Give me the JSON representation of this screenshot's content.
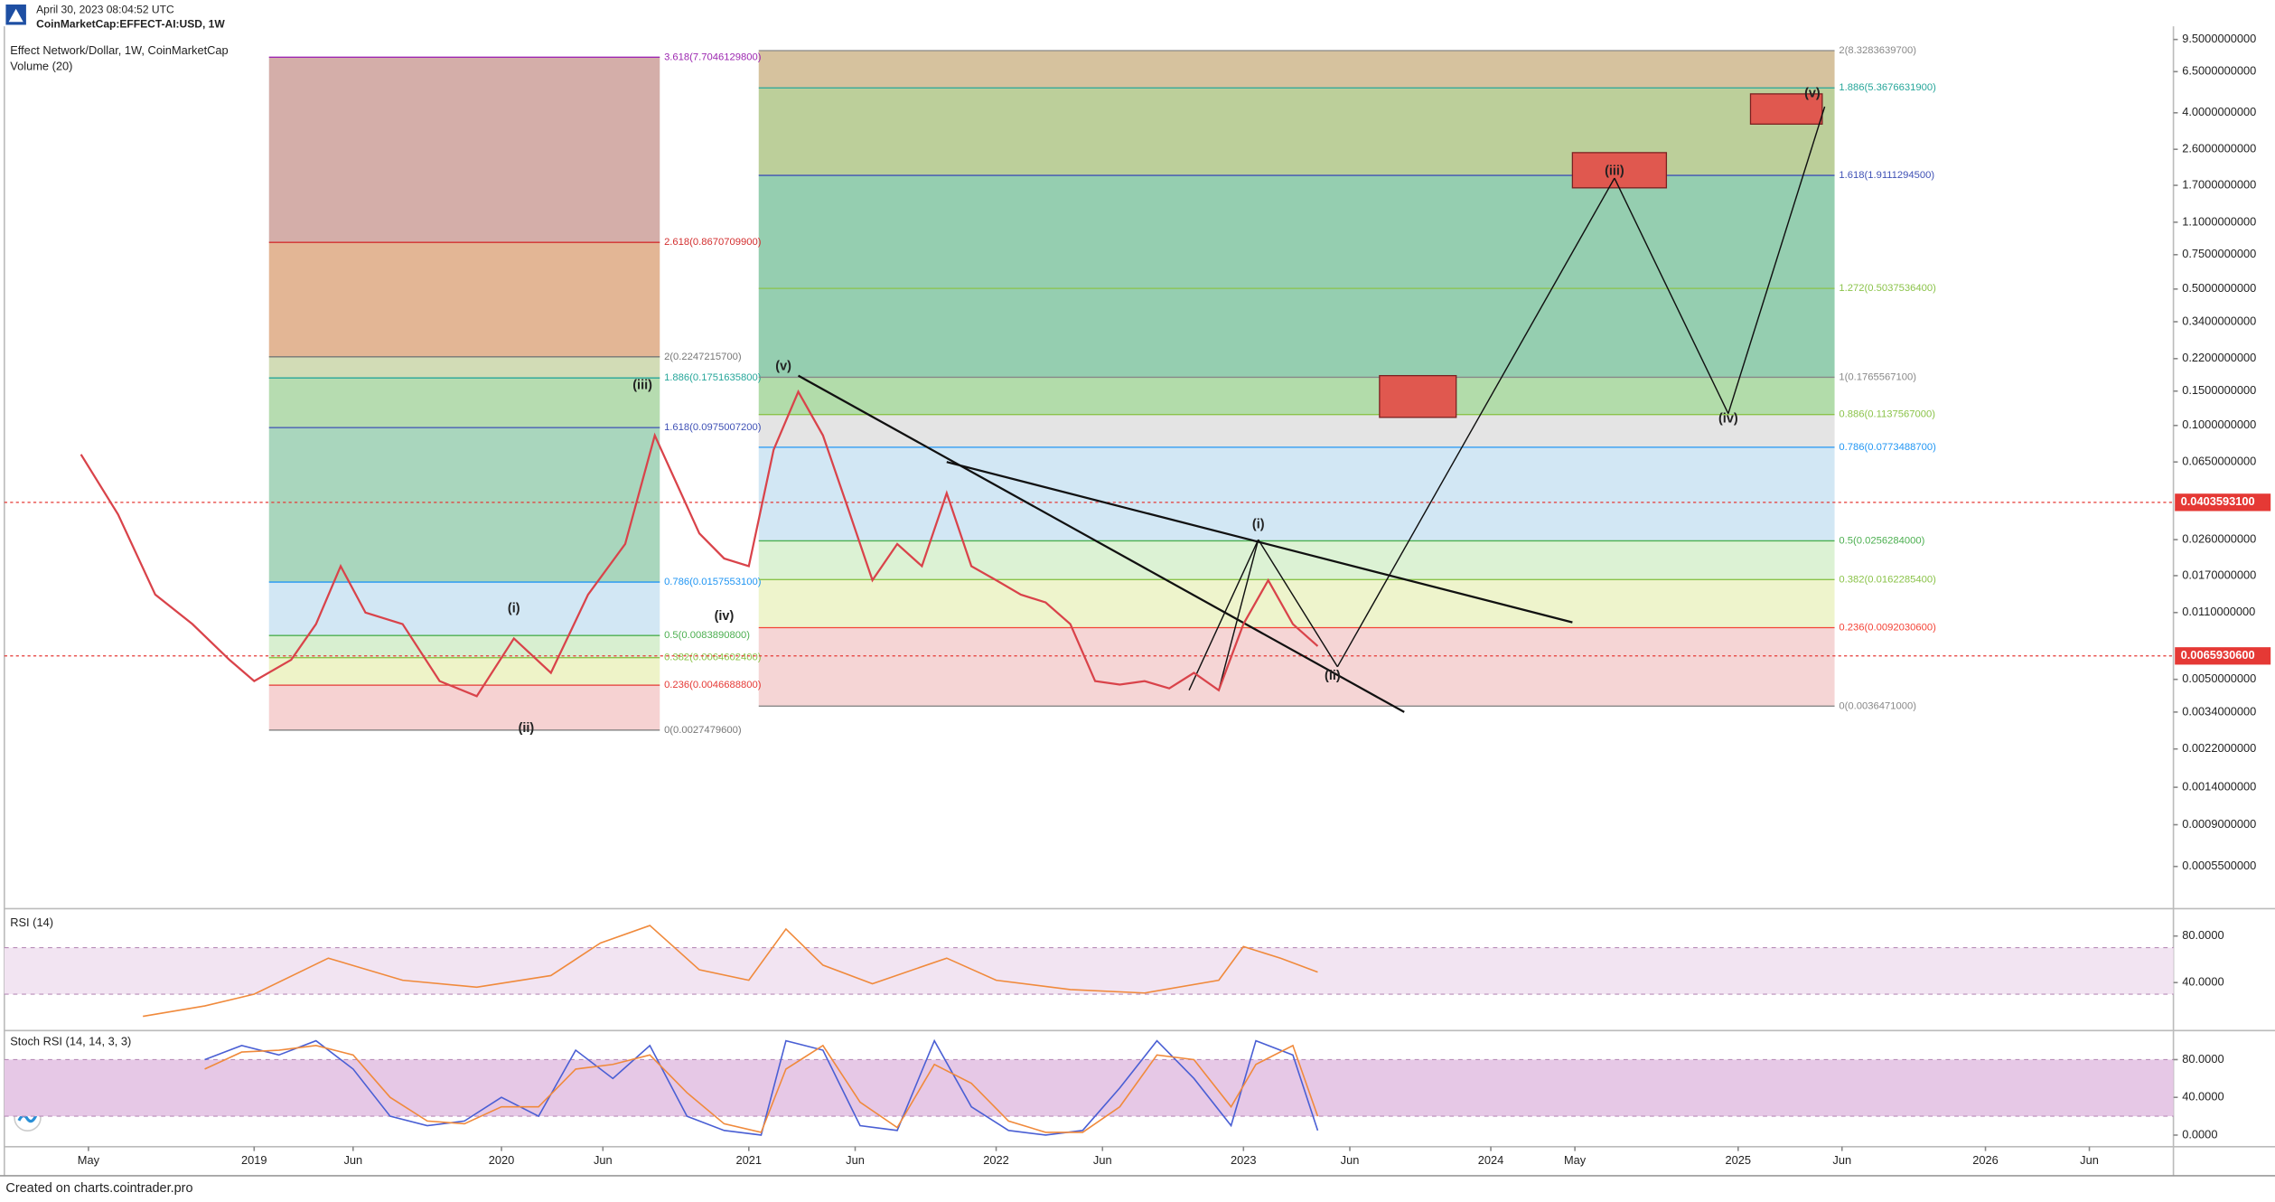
{
  "header": {
    "timestamp": "April 30, 2023 08:04:52 UTC",
    "symbol": "CoinMarketCap:EFFECT-AI:USD, 1W"
  },
  "footer": "Created on charts.cointrader.pro",
  "chart_data": [
    {
      "type": "line",
      "title": "Effect Network/Dollar, 1W, CoinMarketCap",
      "subtitle": "Volume (20)",
      "color": "#d9434a",
      "log_scale": true,
      "xlim": [
        2017.99,
        2026.76
      ],
      "ylim": [
        0.00034,
        11.1
      ],
      "xticks": [
        {
          "value": 2018.33,
          "label": "May"
        },
        {
          "value": 2019,
          "label": "2019"
        },
        {
          "value": 2019.4,
          "label": "Jun"
        },
        {
          "value": 2020,
          "label": "2020"
        },
        {
          "value": 2020.41,
          "label": "Jun"
        },
        {
          "value": 2021,
          "label": "2021"
        },
        {
          "value": 2021.43,
          "label": "Jun"
        },
        {
          "value": 2022,
          "label": "2022"
        },
        {
          "value": 2022.43,
          "label": "Jun"
        },
        {
          "value": 2023,
          "label": "2023"
        },
        {
          "value": 2023.43,
          "label": "Jun"
        },
        {
          "value": 2024,
          "label": "2024"
        },
        {
          "value": 2024.34,
          "label": "May"
        },
        {
          "value": 2025,
          "label": "2025"
        },
        {
          "value": 2025.42,
          "label": "Jun"
        },
        {
          "value": 2026,
          "label": "2026"
        },
        {
          "value": 2026.42,
          "label": "Jun"
        }
      ],
      "yticks": [
        {
          "value": 9.5,
          "label": "9.5000000000"
        },
        {
          "value": 6.5,
          "label": "6.5000000000"
        },
        {
          "value": 4,
          "label": "4.0000000000"
        },
        {
          "value": 2.6,
          "label": "2.6000000000"
        },
        {
          "value": 1.7,
          "label": "1.7000000000"
        },
        {
          "value": 1.1,
          "label": "1.1000000000"
        },
        {
          "value": 0.75,
          "label": "0.7500000000"
        },
        {
          "value": 0.5,
          "label": "0.5000000000"
        },
        {
          "value": 0.34,
          "label": "0.3400000000"
        },
        {
          "value": 0.22,
          "label": "0.2200000000"
        },
        {
          "value": 0.15,
          "label": "0.1500000000"
        },
        {
          "value": 0.1,
          "label": "0.1000000000"
        },
        {
          "value": 0.065,
          "label": "0.0650000000"
        },
        {
          "value": 0.026,
          "label": "0.0260000000"
        },
        {
          "value": 0.017,
          "label": "0.0170000000"
        },
        {
          "value": 0.011,
          "label": "0.0110000000"
        },
        {
          "value": 0.005,
          "label": "0.0050000000"
        },
        {
          "value": 0.0034,
          "label": "0.0034000000"
        },
        {
          "value": 0.0022,
          "label": "0.0022000000"
        },
        {
          "value": 0.0014,
          "label": "0.0014000000"
        },
        {
          "value": 0.0009,
          "label": "0.0009000000"
        },
        {
          "value": 0.00055,
          "label": "0.0005500000"
        }
      ],
      "x": [
        2018.3,
        2018.45,
        2018.6,
        2018.75,
        2018.9,
        2019.0,
        2019.15,
        2019.25,
        2019.35,
        2019.45,
        2019.6,
        2019.75,
        2019.9,
        2020.05,
        2020.2,
        2020.35,
        2020.5,
        2020.62,
        2020.7,
        2020.8,
        2020.9,
        2021.0,
        2021.1,
        2021.2,
        2021.3,
        2021.4,
        2021.5,
        2021.6,
        2021.7,
        2021.8,
        2021.9,
        2022.0,
        2022.1,
        2022.2,
        2022.3,
        2022.4,
        2022.5,
        2022.6,
        2022.7,
        2022.8,
        2022.9,
        2023.0,
        2023.1,
        2023.2,
        2023.3
      ],
      "values": [
        0.071,
        0.035,
        0.0136,
        0.0096,
        0.0063,
        0.0049,
        0.0063,
        0.0096,
        0.019,
        0.011,
        0.0096,
        0.0049,
        0.0041,
        0.0081,
        0.0054,
        0.0136,
        0.0247,
        0.089,
        0.053,
        0.028,
        0.0208,
        0.019,
        0.075,
        0.149,
        0.089,
        0.038,
        0.0161,
        0.0247,
        0.019,
        0.045,
        0.019,
        0.0161,
        0.0136,
        0.0124,
        0.0096,
        0.0049,
        0.0047,
        0.0049,
        0.0045,
        0.0054,
        0.0044,
        0.0096,
        0.0161,
        0.0096,
        0.0074
      ],
      "fibs": [
        {
          "xrange": [
            2019.06,
            2020.64
          ],
          "levels": [
            {
              "value": 7.70461298,
              "label": "3.618(7.7046129800)"
            },
            {
              "value": 0.86707099,
              "label": "2.618(0.8670709900)"
            },
            {
              "value": 0.22472157,
              "label": "2(0.2247215700)"
            },
            {
              "value": 0.17516358,
              "label": "1.886(0.1751635800)"
            },
            {
              "value": 0.09750072,
              "label": "1.618(0.0975007200)"
            },
            {
              "value": 0.01575531,
              "label": "0.786(0.0157553100)"
            },
            {
              "value": 0.00838908,
              "label": "0.5(0.0083890800)"
            },
            {
              "value": 0.00646024,
              "label": "0.382(0.0064602400)"
            },
            {
              "value": 0.00466888,
              "label": "0.236(0.0046688800)"
            },
            {
              "value": 0.00274796,
              "label": "0(0.0027479600)"
            }
          ],
          "colors": [
            "#9c27b0",
            "#d32f2f",
            "#777777",
            "#26a69a",
            "#3f51b5",
            "#2196f3",
            "#4caf50",
            "#8bc34a",
            "#e53935",
            "#777777"
          ],
          "fills": [
            "#d4aea9",
            "#e3b695",
            "#d2dcb6",
            "#b6dcb0",
            "#a9d6bd",
            "#d2e7f4",
            "#d8efd0",
            "#eef3c8",
            "#f6d2d2"
          ]
        },
        {
          "xrange": [
            2021.04,
            2025.39
          ],
          "levels": [
            {
              "value": 8.32836397,
              "label": "2(8.3283639700)"
            },
            {
              "value": 5.36766319,
              "label": "1.886(5.3676631900)"
            },
            {
              "value": 1.91112945,
              "label": "1.618(1.9111294500)"
            },
            {
              "value": 0.50375364,
              "label": "1.272(0.5037536400)"
            },
            {
              "value": 0.17655671,
              "label": "1(0.1765567100)"
            },
            {
              "value": 0.1137567,
              "label": "0.886(0.1137567000)"
            },
            {
              "value": 0.07734887,
              "label": "0.786(0.0773488700)"
            },
            {
              "value": 0.0256284,
              "label": "0.5(0.0256284000)"
            },
            {
              "value": 0.01622854,
              "label": "0.382(0.0162285400)"
            },
            {
              "value": 0.00920306,
              "label": "0.236(0.0092030600)"
            },
            {
              "value": 0.0036471,
              "label": "0(0.0036471000)"
            }
          ],
          "colors": [
            "#888888",
            "#26a69a",
            "#3f51b5",
            "#8bc34a",
            "#888888",
            "#8bc34a",
            "#2196f3",
            "#4caf50",
            "#8bc34a",
            "#f44336",
            "#888888"
          ],
          "fills": [
            "#d6c29e",
            "#bccf9a",
            "#95ceb0",
            "#95ceb0",
            "#b2dcaa",
            "#e4e4e4",
            "#d2e7f4",
            "#dcf2d4",
            "#eef4cc",
            "#f5d5d5"
          ]
        }
      ],
      "price_markers": [
        {
          "value": 0.04035931,
          "label": "0.0403593100"
        },
        {
          "value": 0.00659306,
          "label": "0.0065930600"
        }
      ],
      "annotations": [
        {
          "text": "(iii)",
          "x": 2020.57,
          "y": 0.16
        },
        {
          "text": "(i)",
          "x": 2020.05,
          "y": 0.0115
        },
        {
          "text": "(ii)",
          "x": 2020.1,
          "y": 0.0028
        },
        {
          "text": "(iv)",
          "x": 2020.9,
          "y": 0.0105
        },
        {
          "text": "(v)",
          "x": 2021.14,
          "y": 0.2
        },
        {
          "text": "(i)",
          "x": 2023.06,
          "y": 0.031
        },
        {
          "text": "(ii)",
          "x": 2023.36,
          "y": 0.0052
        },
        {
          "text": "(iii)",
          "x": 2024.5,
          "y": 2.0
        },
        {
          "text": "(iv)",
          "x": 2024.96,
          "y": 0.108
        },
        {
          "text": "(v)",
          "x": 2025.3,
          "y": 5.0
        }
      ],
      "drawings": [
        {
          "points": [
            [
              2021.2,
              0.18
            ],
            [
              2023.65,
              0.0034
            ]
          ]
        },
        {
          "points": [
            [
              2021.8,
              0.065
            ],
            [
              2024.33,
              0.0098
            ]
          ]
        },
        {
          "points": [
            [
              2022.78,
              0.0044
            ],
            [
              2023.06,
              0.026
            ]
          ]
        },
        {
          "points": [
            [
              2022.9,
              0.0044
            ],
            [
              2023.06,
              0.026
            ]
          ]
        },
        {
          "points": [
            [
              2023.06,
              0.026
            ],
            [
              2023.38,
              0.0058
            ]
          ]
        },
        {
          "points": [
            [
              2023.38,
              0.0058
            ],
            [
              2024.5,
              1.85
            ]
          ]
        },
        {
          "points": [
            [
              2024.5,
              1.85
            ],
            [
              2024.96,
              0.115
            ]
          ]
        },
        {
          "points": [
            [
              2024.96,
              0.115
            ],
            [
              2025.35,
              4.3
            ]
          ]
        }
      ],
      "zones": [
        {
          "x": [
            2023.55,
            2023.86
          ],
          "y": [
            0.11,
            0.18
          ]
        },
        {
          "x": [
            2024.33,
            2024.71
          ],
          "y": [
            1.65,
            2.5
          ]
        },
        {
          "x": [
            2025.05,
            2025.34
          ],
          "y": [
            3.5,
            5.0
          ]
        }
      ]
    },
    {
      "type": "line",
      "title": "RSI (14)",
      "color": "#f08a3c",
      "ylim": [
        1.25,
        101
      ],
      "bands": [
        30,
        70
      ],
      "band_color": "#f2e4f2",
      "yticks": [
        {
          "value": 80,
          "label": "80.0000"
        },
        {
          "value": 40,
          "label": "40.0000"
        }
      ],
      "x": [
        2018.55,
        2018.8,
        2019.0,
        2019.3,
        2019.6,
        2019.9,
        2020.2,
        2020.4,
        2020.6,
        2020.8,
        2021.0,
        2021.15,
        2021.3,
        2021.5,
        2021.8,
        2022.0,
        2022.3,
        2022.6,
        2022.9,
        2023.0,
        2023.15,
        2023.3
      ],
      "values": [
        11,
        20,
        30,
        61,
        42,
        36,
        46,
        74,
        89,
        51,
        42,
        86,
        55,
        39,
        61,
        42,
        34,
        31,
        42,
        71,
        61,
        49
      ]
    },
    {
      "type": "line",
      "title": "Stoch RSI (14, 14, 3, 3)",
      "ylim": [
        -12.3,
        107.7
      ],
      "bands": [
        20,
        80
      ],
      "band_color": "#e6c8e6",
      "yticks": [
        {
          "value": 80,
          "label": "80.0000"
        },
        {
          "value": 40,
          "label": "40.0000"
        },
        {
          "value": 0,
          "label": "0.0000"
        }
      ],
      "x": [
        2018.8,
        2018.95,
        2019.1,
        2019.25,
        2019.4,
        2019.55,
        2019.7,
        2019.85,
        2020.0,
        2020.15,
        2020.3,
        2020.45,
        2020.6,
        2020.75,
        2020.9,
        2021.05,
        2021.15,
        2021.3,
        2021.45,
        2021.6,
        2021.75,
        2021.9,
        2022.05,
        2022.2,
        2022.35,
        2022.5,
        2022.65,
        2022.8,
        2022.95,
        2023.05,
        2023.2,
        2023.3
      ],
      "series": [
        {
          "color": "#4a5fd4",
          "values": [
            80,
            95,
            85,
            100,
            70,
            20,
            10,
            15,
            40,
            20,
            90,
            60,
            95,
            20,
            5,
            0,
            100,
            90,
            10,
            5,
            100,
            30,
            5,
            0,
            5,
            50,
            100,
            60,
            10,
            100,
            85,
            5
          ]
        },
        {
          "color": "#f08a3c",
          "values": [
            70,
            88,
            90,
            95,
            85,
            40,
            15,
            12,
            30,
            30,
            70,
            75,
            85,
            45,
            12,
            3,
            70,
            95,
            35,
            8,
            75,
            55,
            15,
            3,
            3,
            30,
            85,
            80,
            30,
            75,
            95,
            20
          ]
        }
      ]
    }
  ]
}
